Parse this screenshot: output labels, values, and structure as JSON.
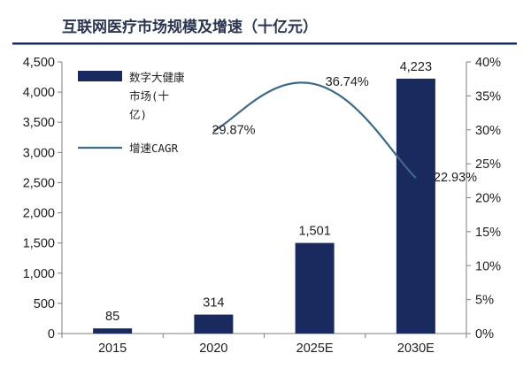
{
  "title": "互联网医疗市场规模及增速（十亿元）",
  "colors": {
    "bar": "#1b2a5e",
    "line": "#3d6a86",
    "title_rule": "#1b2a5e",
    "axis": "#7f7f7f"
  },
  "legend": {
    "bar_label_lines": [
      "数字大健康",
      "市场(十",
      "亿)"
    ],
    "line_label": "增速CAGR"
  },
  "chart_data": {
    "type": "bar",
    "categories": [
      "2015",
      "2020",
      "2025E",
      "2030E"
    ],
    "series": [
      {
        "name": "数字大健康市场(十亿)",
        "type": "bar",
        "axis": "left",
        "values": [
          85,
          314,
          1501,
          4223
        ],
        "labels": [
          "85",
          "314",
          "1,501",
          "4,223"
        ]
      },
      {
        "name": "增速CAGR",
        "type": "line",
        "axis": "right",
        "points": [
          {
            "x": "2020",
            "y": 29.87,
            "label": "29.87%"
          },
          {
            "x": "2025E",
            "y": 36.74,
            "label": "36.74%"
          },
          {
            "x": "2030E",
            "y": 22.93,
            "label": "22.93%"
          }
        ]
      }
    ],
    "y_left": {
      "ylim": [
        0,
        4500
      ],
      "ticks": [
        0,
        500,
        1000,
        1500,
        2000,
        2500,
        3000,
        3500,
        4000,
        4500
      ],
      "tick_labels": [
        "0",
        "500",
        "1,000",
        "1,500",
        "2,000",
        "2,500",
        "3,000",
        "3,500",
        "4,000",
        "4,500"
      ]
    },
    "y_right": {
      "ylim": [
        0,
        40
      ],
      "ticks": [
        0,
        5,
        10,
        15,
        20,
        25,
        30,
        35,
        40
      ],
      "tick_labels": [
        "0%",
        "5%",
        "10%",
        "15%",
        "20%",
        "25%",
        "30%",
        "35%",
        "40%"
      ]
    },
    "grid": false,
    "legend_position": "top-left"
  }
}
